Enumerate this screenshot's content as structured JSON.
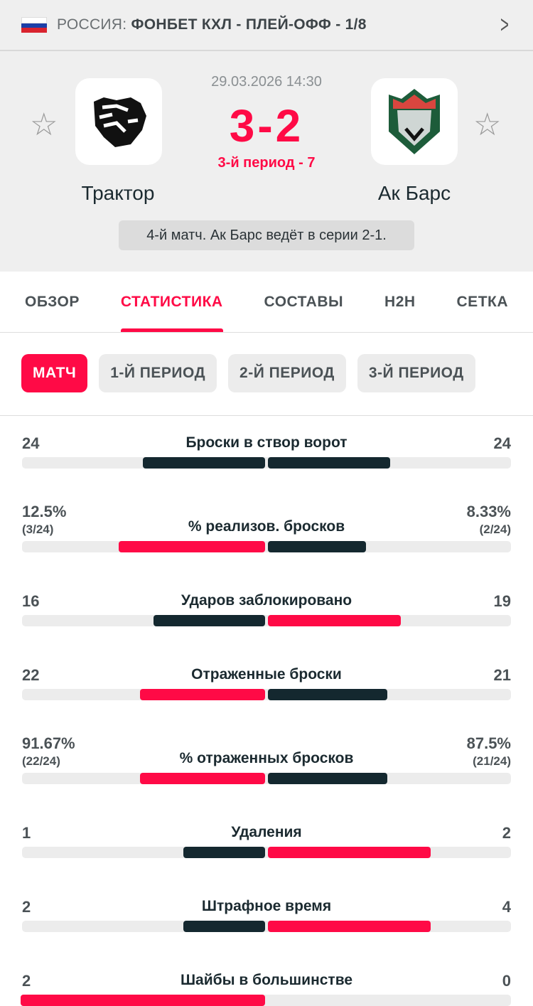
{
  "header": {
    "country": "РОССИЯ:",
    "league": "ФОНБЕТ КХЛ - ПЛЕЙ-ОФФ - 1/8"
  },
  "match": {
    "datetime": "29.03.2026 14:30",
    "score": "3-2",
    "status": "3-й период - 7",
    "home": "Трактор",
    "away": "Ак Барс",
    "series": "4-й матч. Ак Барс ведёт в серии 2-1."
  },
  "tabs": [
    "ОБЗОР",
    "СТАТИСТИКА",
    "СОСТАВЫ",
    "H2H",
    "СЕТКА"
  ],
  "periods": [
    "МАТЧ",
    "1-Й ПЕРИОД",
    "2-Й ПЕРИОД",
    "3-Й ПЕРИОД"
  ],
  "colors": {
    "accent": "#ff0a46",
    "dark": "#14282f"
  },
  "stats": [
    {
      "label": "Броски в створ ворот",
      "home": "24",
      "away": "24",
      "h": 24,
      "a": 24
    },
    {
      "label": "% реализов. бросков",
      "home": "12.5%",
      "home_sub": "(3/24)",
      "away": "8.33%",
      "away_sub": "(2/24)",
      "h": 12.5,
      "a": 8.33
    },
    {
      "label": "Ударов заблокировано",
      "home": "16",
      "away": "19",
      "h": 16,
      "a": 19
    },
    {
      "label": "Отраженные броски",
      "home": "22",
      "away": "21",
      "h": 22,
      "a": 21
    },
    {
      "label": "% отраженных бросков",
      "home": "91.67%",
      "home_sub": "(22/24)",
      "away": "87.5%",
      "away_sub": "(21/24)",
      "h": 91.67,
      "a": 87.5
    },
    {
      "label": "Удаления",
      "home": "1",
      "away": "2",
      "h": 1,
      "a": 2
    },
    {
      "label": "Штрафное время",
      "home": "2",
      "away": "4",
      "h": 2,
      "a": 4
    },
    {
      "label": "Шайбы в большинстве",
      "home": "2",
      "away": "0",
      "h": 2,
      "a": 0
    }
  ]
}
